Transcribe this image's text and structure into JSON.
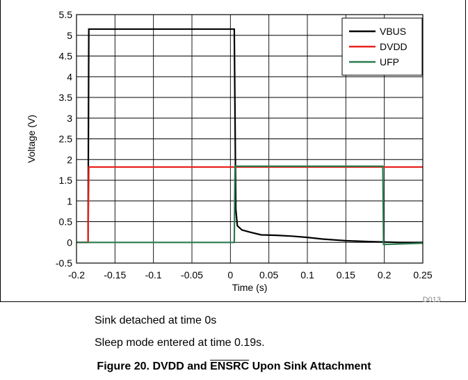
{
  "chart_data": {
    "type": "line",
    "xlabel": "Time (s)",
    "ylabel": "Voltage (V)",
    "xlim": [
      -0.2,
      0.25
    ],
    "ylim": [
      -0.5,
      5.5
    ],
    "x_ticks": [
      "-0.2",
      "-0.15",
      "-0.1",
      "-0.05",
      "0",
      "0.05",
      "0.1",
      "0.15",
      "0.2",
      "0.25"
    ],
    "y_ticks": [
      "-0.5",
      "0",
      "0.5",
      "1",
      "1.5",
      "2",
      "2.5",
      "3",
      "3.5",
      "4",
      "4.5",
      "5",
      "5.5"
    ],
    "grid": true,
    "legend_position": "top-right",
    "figure_code": "D013",
    "series": [
      {
        "name": "VBUS",
        "color": "#000000",
        "x": [
          -0.2,
          -0.185,
          -0.184,
          0.005,
          0.007,
          0.009,
          0.015,
          0.025,
          0.04,
          0.06,
          0.08,
          0.1,
          0.12,
          0.15,
          0.18,
          0.2,
          0.22,
          0.25
        ],
        "y": [
          0,
          0,
          5.15,
          5.15,
          0.8,
          0.4,
          0.3,
          0.25,
          0.18,
          0.17,
          0.15,
          0.12,
          0.08,
          0.04,
          0.02,
          0.01,
          0.0,
          0.0
        ]
      },
      {
        "name": "DVDD",
        "color": "#e8211d",
        "x": [
          -0.2,
          -0.185,
          -0.184,
          0.25
        ],
        "y": [
          0,
          0,
          1.82,
          1.82
        ]
      },
      {
        "name": "UFP",
        "color": "#2a7a4f",
        "x": [
          -0.2,
          -0.185,
          0.005,
          0.006,
          0.198,
          0.199,
          0.25
        ],
        "y": [
          0,
          0,
          0,
          1.84,
          1.84,
          -0.05,
          -0.02
        ]
      }
    ]
  },
  "notes": {
    "detached": "Sink detached at time 0s",
    "sleep": "Sleep mode entered at time 0.19s."
  },
  "caption": {
    "prefix": "Figure 20. DVDD and ",
    "overlined": "ENSRC",
    "suffix": " Upon Sink Attachment"
  }
}
